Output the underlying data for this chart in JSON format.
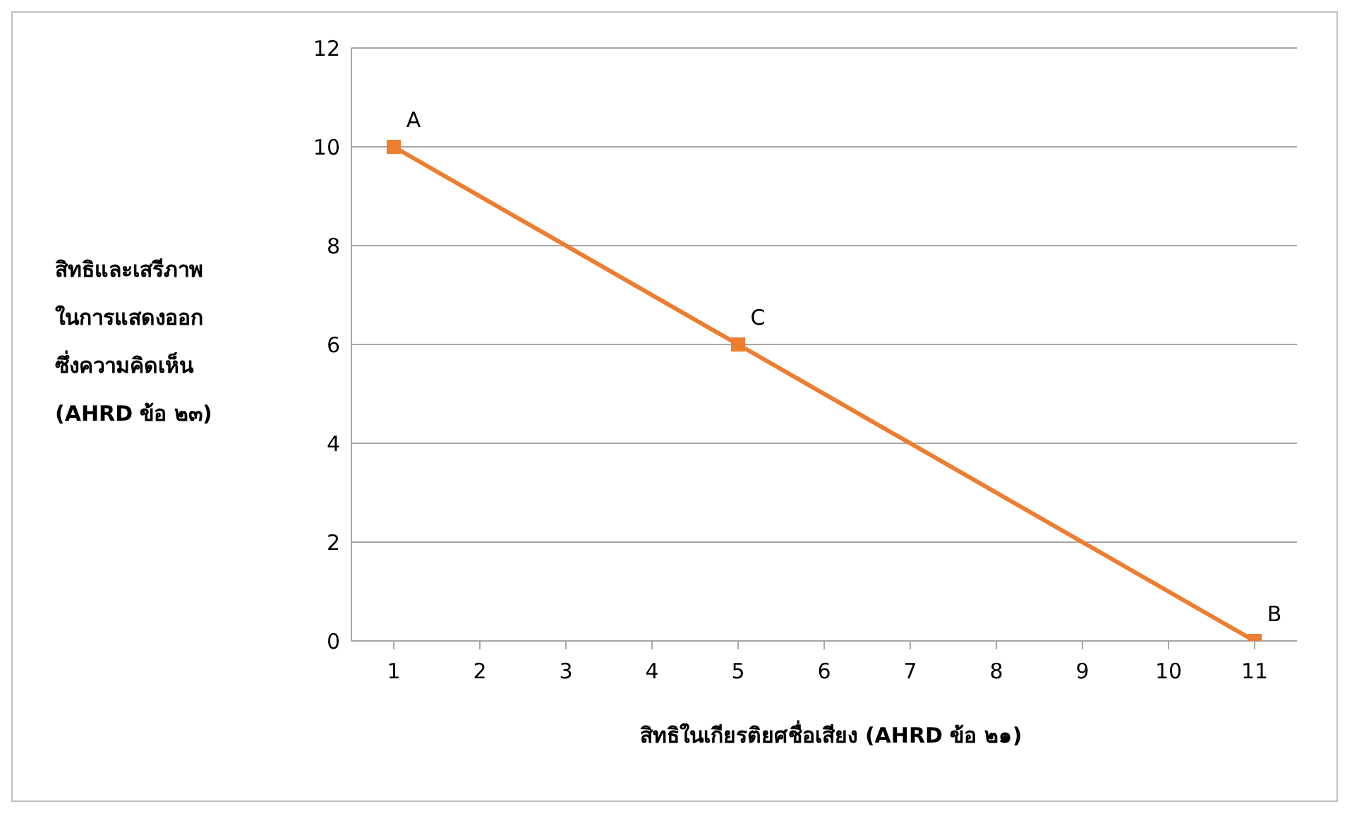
{
  "chart_data": {
    "type": "line",
    "xlabel": "สิทธิในเกียรติยศชื่อเสียง (AHRD ข้อ ๒๑)",
    "ylabel": "สิทธิและเสรีภาพ\nในการแสดงออก\nซึ่งความคิดเห็น\n(AHRD ข้อ ๒๓)",
    "categories": [
      "1",
      "2",
      "3",
      "4",
      "5",
      "6",
      "7",
      "8",
      "9",
      "10",
      "11"
    ],
    "series": [
      {
        "color": "#ed7d31",
        "x": [
          "1",
          "5",
          "11"
        ],
        "values": [
          10,
          6,
          0
        ]
      }
    ],
    "annotations": [
      {
        "text": "A",
        "x": "1",
        "y": 10
      },
      {
        "text": "C",
        "x": "5",
        "y": 6
      },
      {
        "text": "B",
        "x": "11",
        "y": 0
      }
    ],
    "ylim": [
      0,
      12
    ],
    "yticks": [
      0,
      2,
      4,
      6,
      8,
      10,
      12
    ],
    "grid": "y",
    "marker": "square",
    "legend": false
  }
}
